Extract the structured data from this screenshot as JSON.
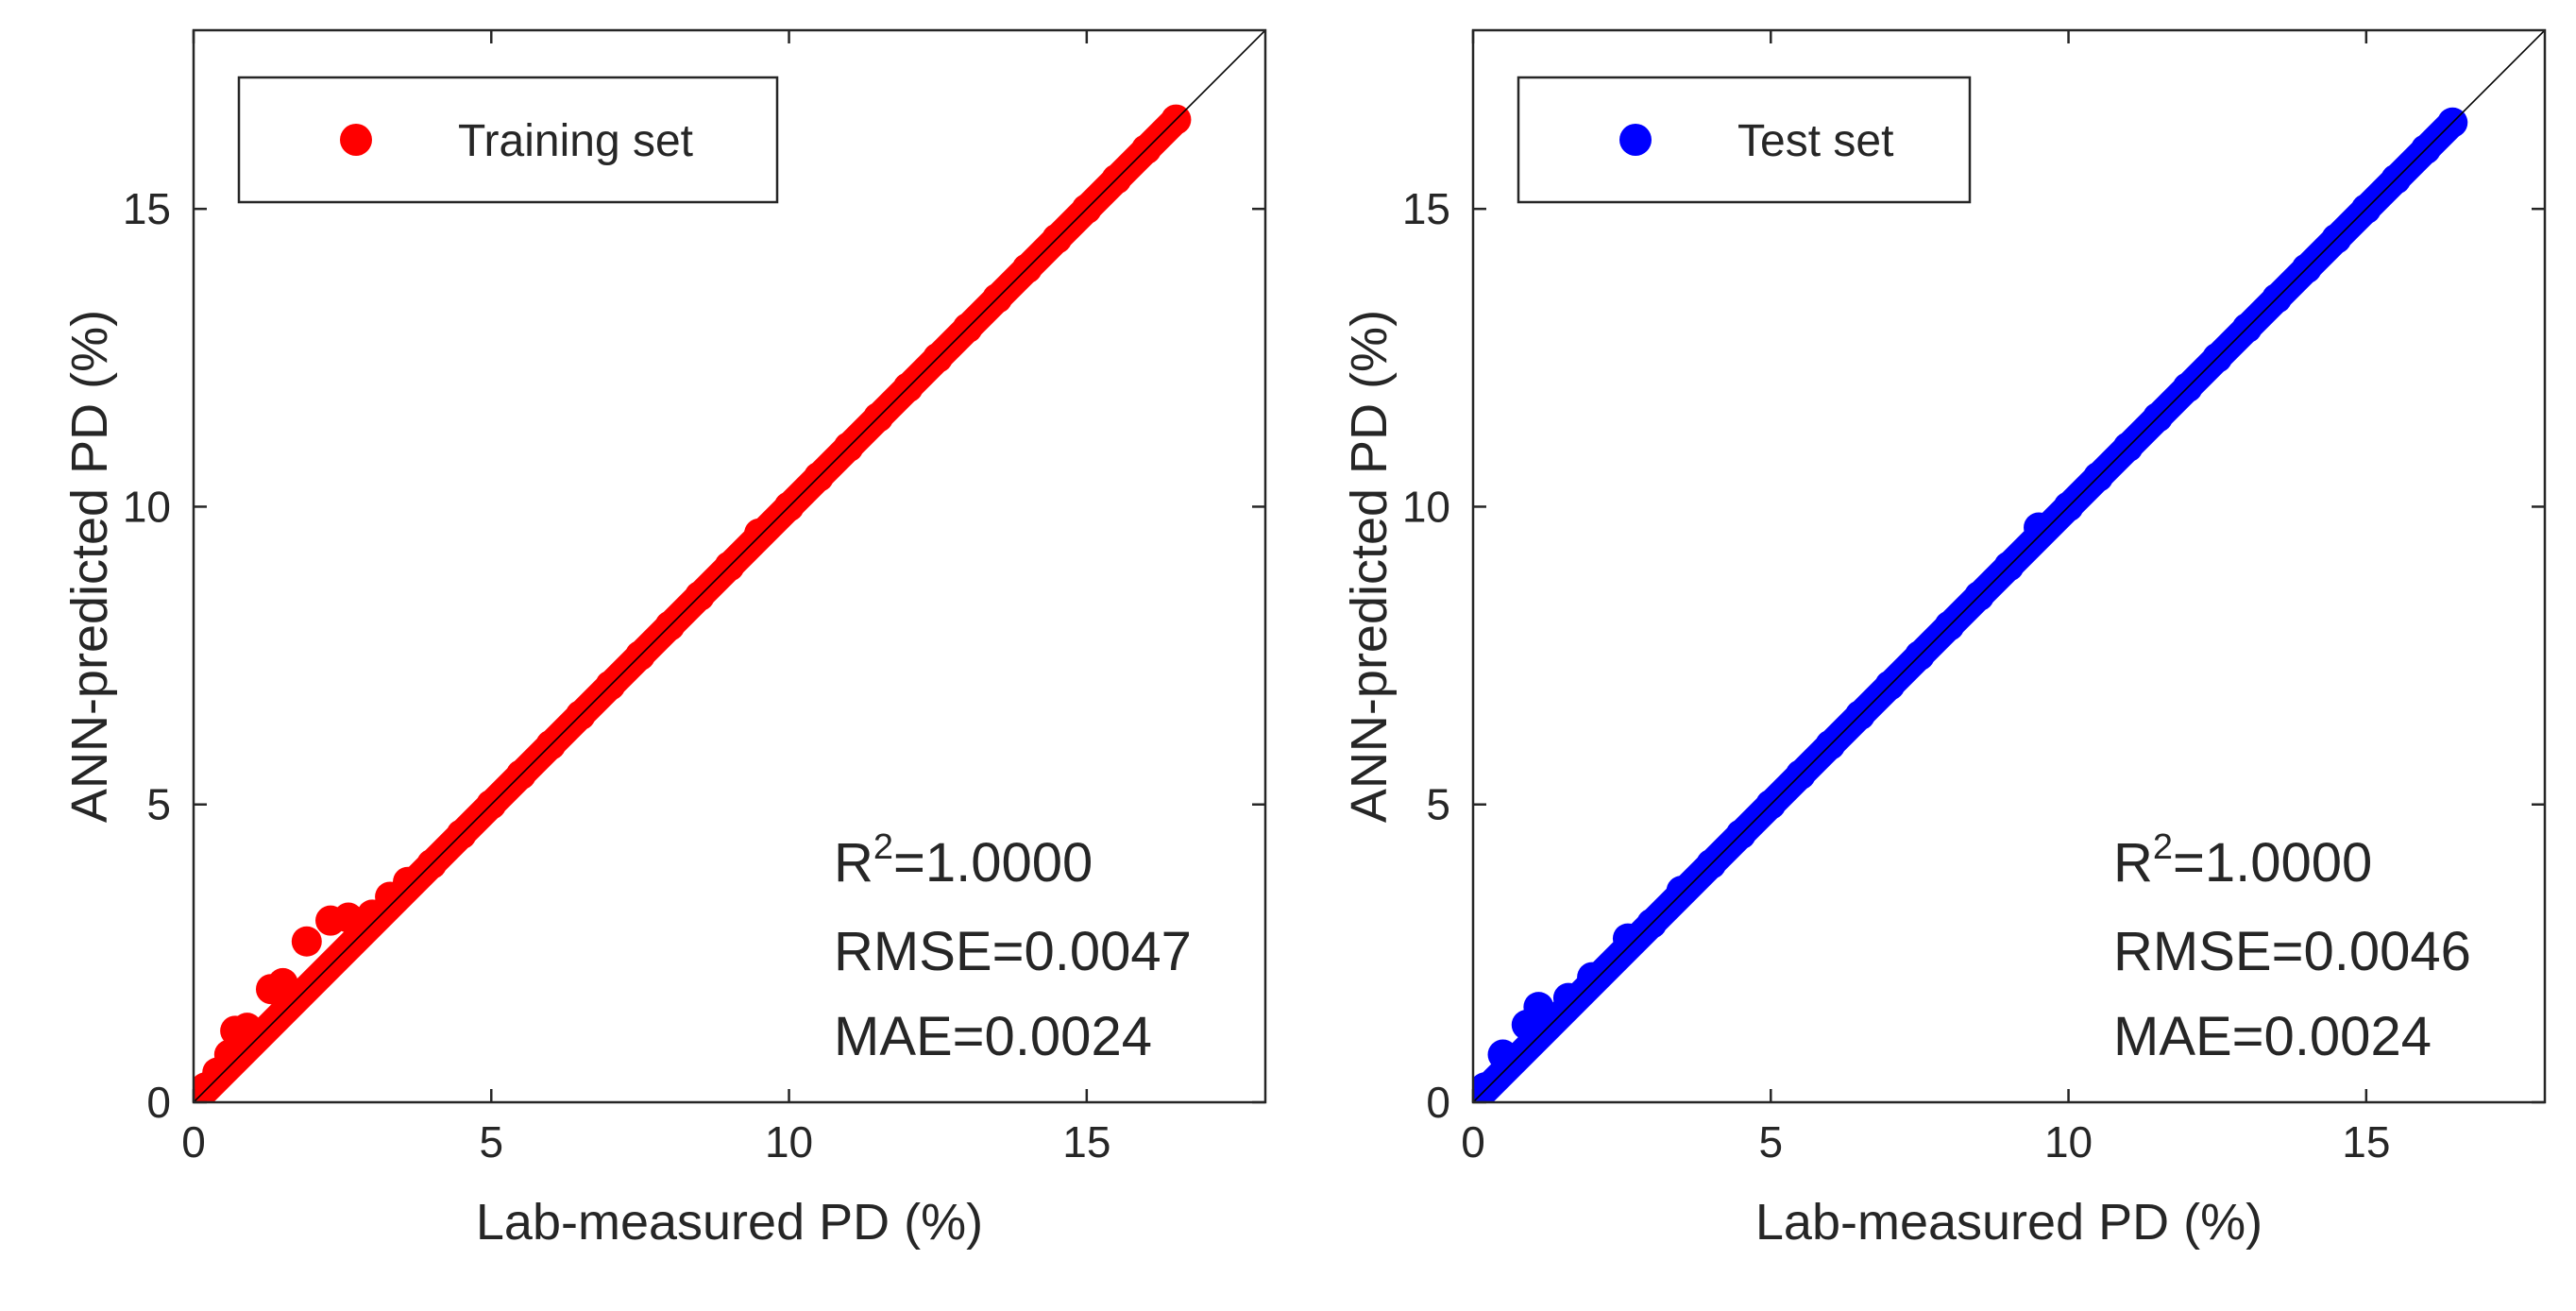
{
  "chart_data": [
    {
      "type": "scatter",
      "legend": "Training set",
      "legend_position": "top-left",
      "xlabel": "Lab-measured PD (%)",
      "ylabel": "ANN-predicted PD (%)",
      "xlim": [
        0,
        18
      ],
      "ylim": [
        0,
        18
      ],
      "xticks": [
        "0",
        "5",
        "10",
        "15"
      ],
      "yticks": [
        "0",
        "5",
        "10",
        "15"
      ],
      "tick_values": [
        0,
        5,
        10,
        15
      ],
      "reference_line": [
        [
          0,
          0
        ],
        [
          18,
          18
        ]
      ],
      "color": "#ff0000",
      "data_range": [
        0,
        16.5
      ],
      "points": [
        [
          0.2,
          0.25
        ],
        [
          0.4,
          0.5
        ],
        [
          0.6,
          0.8
        ],
        [
          0.7,
          1.2
        ],
        [
          0.9,
          1.25
        ],
        [
          1.3,
          1.9
        ],
        [
          1.5,
          2.0
        ],
        [
          1.9,
          2.7
        ],
        [
          2.3,
          3.05
        ],
        [
          2.6,
          3.1
        ],
        [
          3.0,
          3.15
        ],
        [
          3.3,
          3.45
        ],
        [
          3.6,
          3.7
        ],
        [
          4.0,
          4.0
        ],
        [
          4.5,
          4.5
        ],
        [
          5.0,
          5.0
        ],
        [
          5.5,
          5.5
        ],
        [
          6.0,
          6.0
        ],
        [
          6.5,
          6.5
        ],
        [
          7.0,
          7.0
        ],
        [
          7.5,
          7.5
        ],
        [
          8.0,
          8.0
        ],
        [
          8.5,
          8.5
        ],
        [
          9.0,
          9.0
        ],
        [
          9.5,
          9.55
        ],
        [
          10.0,
          10.0
        ],
        [
          10.5,
          10.5
        ],
        [
          11.0,
          11.0
        ],
        [
          11.5,
          11.5
        ],
        [
          12.0,
          12.0
        ],
        [
          12.5,
          12.5
        ],
        [
          13.0,
          13.0
        ],
        [
          13.5,
          13.5
        ],
        [
          14.0,
          14.0
        ],
        [
          14.5,
          14.5
        ],
        [
          15.0,
          15.0
        ],
        [
          15.5,
          15.5
        ],
        [
          16.0,
          16.0
        ],
        [
          16.5,
          16.5
        ]
      ],
      "stats": {
        "r2_prefix": "R",
        "r2_superscript": "2",
        "r2_value": "=1.0000",
        "rmse": "RMSE=0.0047",
        "mae": "MAE=0.0024"
      }
    },
    {
      "type": "scatter",
      "legend": "Test set",
      "legend_position": "top-left",
      "xlabel": "Lab-measured PD (%)",
      "ylabel": "ANN-predicted PD (%)",
      "xlim": [
        0,
        18
      ],
      "ylim": [
        0,
        18
      ],
      "xticks": [
        "0",
        "5",
        "10",
        "15"
      ],
      "yticks": [
        "0",
        "5",
        "10",
        "15"
      ],
      "tick_values": [
        0,
        5,
        10,
        15
      ],
      "reference_line": [
        [
          0,
          0
        ],
        [
          18,
          18
        ]
      ],
      "color": "#0000ff",
      "data_range": [
        0,
        16.45
      ],
      "points": [
        [
          0.2,
          0.25
        ],
        [
          0.5,
          0.8
        ],
        [
          0.9,
          1.3
        ],
        [
          1.1,
          1.6
        ],
        [
          1.6,
          1.75
        ],
        [
          2.0,
          2.1
        ],
        [
          2.6,
          2.75
        ],
        [
          3.0,
          3.0
        ],
        [
          3.5,
          3.55
        ],
        [
          4.0,
          4.0
        ],
        [
          4.5,
          4.5
        ],
        [
          5.0,
          5.0
        ],
        [
          5.5,
          5.5
        ],
        [
          6.0,
          6.0
        ],
        [
          6.5,
          6.5
        ],
        [
          7.0,
          7.0
        ],
        [
          7.5,
          7.5
        ],
        [
          8.0,
          8.0
        ],
        [
          8.5,
          8.5
        ],
        [
          9.0,
          9.0
        ],
        [
          9.5,
          9.65
        ],
        [
          10.0,
          10.0
        ],
        [
          10.5,
          10.5
        ],
        [
          11.0,
          11.0
        ],
        [
          11.5,
          11.5
        ],
        [
          12.0,
          12.0
        ],
        [
          12.5,
          12.5
        ],
        [
          13.0,
          13.0
        ],
        [
          13.5,
          13.5
        ],
        [
          14.0,
          14.0
        ],
        [
          14.5,
          14.5
        ],
        [
          15.0,
          15.0
        ],
        [
          15.5,
          15.5
        ],
        [
          16.0,
          16.0
        ],
        [
          16.45,
          16.45
        ]
      ],
      "stats": {
        "r2_prefix": "R",
        "r2_superscript": "2",
        "r2_value": "=1.0000",
        "rmse": "RMSE=0.0046",
        "mae": "MAE=0.0024"
      }
    }
  ]
}
